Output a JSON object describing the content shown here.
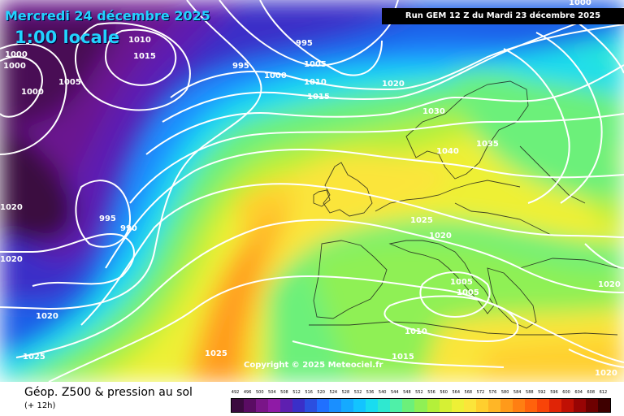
{
  "header": {
    "valid_date": "Mercredi 24 décembre 2025",
    "valid_hour": "1:00 locale",
    "run_info": "Run GEM 12 Z du Mardi 23 décembre 2025"
  },
  "footer": {
    "parameter_title": "Géop. Z500 & pression au sol",
    "lead_time": "(+ 12h)",
    "copyright": "Copyright © 2025 Meteociel.fr"
  },
  "legend": {
    "labels": [
      "492",
      "496",
      "500",
      "504",
      "508",
      "512",
      "516",
      "520",
      "524",
      "528",
      "532",
      "536",
      "540",
      "544",
      "548",
      "552",
      "556",
      "560",
      "564",
      "568",
      "572",
      "576",
      "580",
      "584",
      "588",
      "592",
      "596",
      "600",
      "604",
      "608",
      "612"
    ],
    "colors": [
      "#3b0a3f",
      "#5a0c63",
      "#7a1588",
      "#8f1aa6",
      "#5e1fb0",
      "#3a2fc8",
      "#2b4fe0",
      "#2070ff",
      "#1a8fff",
      "#15aaff",
      "#13c4ff",
      "#19dcf0",
      "#2fe8d0",
      "#4ff0a8",
      "#6cf07a",
      "#8ff055",
      "#b4f03a",
      "#d6f034",
      "#eef036",
      "#fbe53a",
      "#ffcf2e",
      "#ffb626",
      "#ff9a1a",
      "#ff7f12",
      "#ff620c",
      "#f84408",
      "#e02406",
      "#c01004",
      "#980404",
      "#6e0000",
      "#3e0000"
    ]
  },
  "pressure_labels": [
    {
      "text": "1010"
    },
    {
      "text": "1015"
    },
    {
      "text": "1000"
    },
    {
      "text": "1000"
    },
    {
      "text": "1005"
    },
    {
      "text": "1000"
    },
    {
      "text": "995"
    },
    {
      "text": "995"
    },
    {
      "text": "1000"
    },
    {
      "text": "1005"
    },
    {
      "text": "1010"
    },
    {
      "text": "1015"
    },
    {
      "text": "1020"
    },
    {
      "text": "1030"
    },
    {
      "text": "1035"
    },
    {
      "text": "1040"
    },
    {
      "text": "1025"
    },
    {
      "text": "1020"
    },
    {
      "text": "1020"
    },
    {
      "text": "995"
    },
    {
      "text": "990"
    },
    {
      "text": "1020"
    },
    {
      "text": "1020"
    },
    {
      "text": "1025"
    },
    {
      "text": "1025"
    },
    {
      "text": "1005"
    },
    {
      "text": "1005"
    },
    {
      "text": "1010"
    },
    {
      "text": "1015"
    },
    {
      "text": "1020"
    },
    {
      "text": "1020"
    },
    {
      "text": "1000"
    }
  ]
}
